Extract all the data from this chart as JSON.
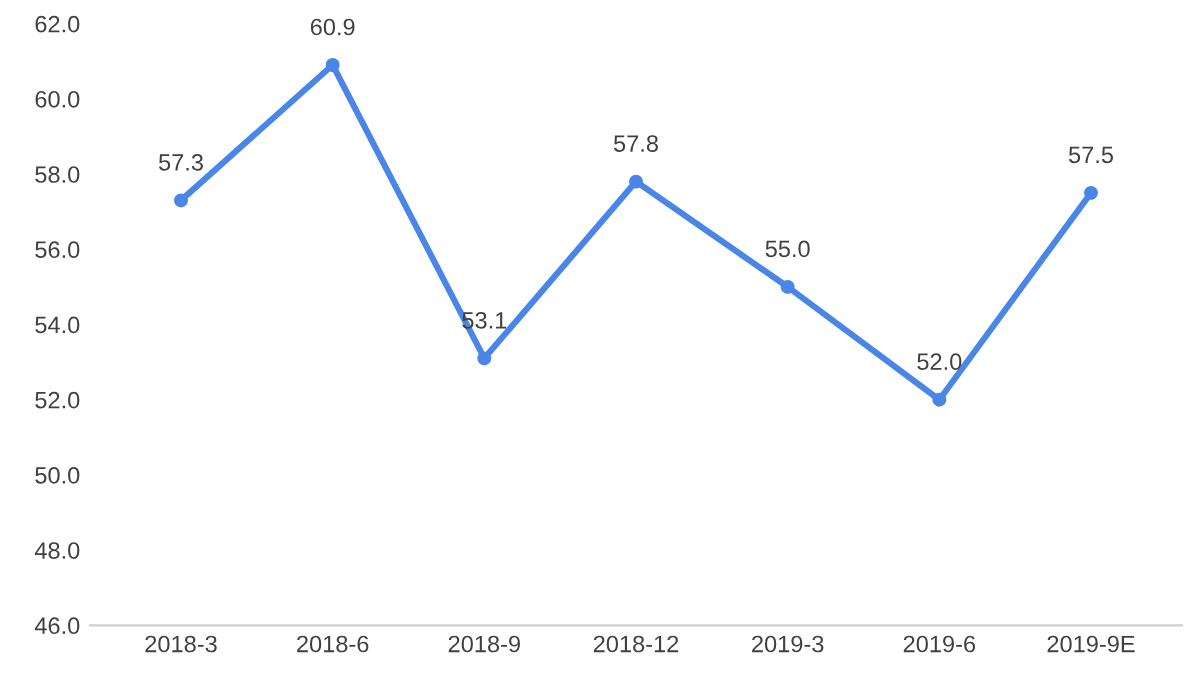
{
  "chart_data": {
    "type": "line",
    "categories": [
      "2018-3",
      "2018-6",
      "2018-9",
      "2018-12",
      "2019-3",
      "2019-6",
      "2019-9E"
    ],
    "series": [
      {
        "color": "#4a86e8",
        "values": [
          57.3,
          60.9,
          53.1,
          57.8,
          55.0,
          52.0,
          57.5
        ],
        "value_labels": [
          "57.3",
          "60.9",
          "53.1",
          "57.8",
          "55.0",
          "52.0",
          "57.5"
        ]
      }
    ],
    "ylim": [
      46.0,
      62.0
    ],
    "yticks": [
      {
        "value": 46,
        "label": "46.0"
      },
      {
        "value": 48,
        "label": "48.0"
      },
      {
        "value": 50,
        "label": "50.0"
      },
      {
        "value": 52,
        "label": "52.0"
      },
      {
        "value": 54,
        "label": "54.0"
      },
      {
        "value": 56,
        "label": "56.0"
      },
      {
        "value": 58,
        "label": "58.0"
      },
      {
        "value": 60,
        "label": "60.0"
      },
      {
        "value": 62,
        "label": "62.0"
      }
    ],
    "marker": "circle",
    "line_style": "solid",
    "grid": false
  }
}
